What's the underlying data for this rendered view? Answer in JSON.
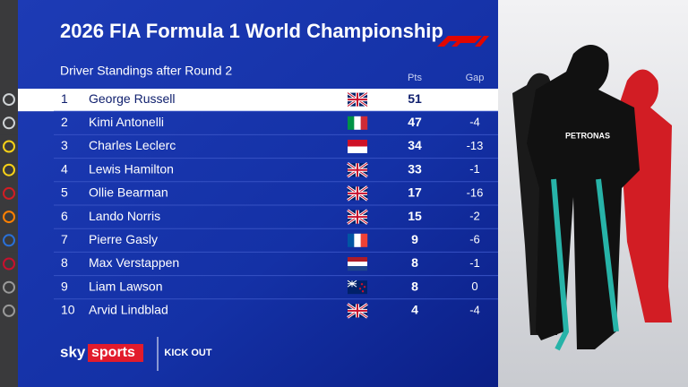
{
  "header": {
    "title": "2026 FIA Formula 1 World Championship",
    "subtitle": "Driver Standings after Round 2"
  },
  "table": {
    "columns": [
      "Pts",
      "Gap"
    ],
    "rows": [
      {
        "pos": 1,
        "driver": "George Russell",
        "pts": 51,
        "gap": null
      },
      {
        "pos": 2,
        "driver": "Kimi Antonelli",
        "pts": 47,
        "gap": -4
      },
      {
        "pos": 3,
        "driver": "Charles Leclerc",
        "pts": 34,
        "gap": -13
      },
      {
        "pos": 4,
        "driver": "Lewis Hamilton",
        "pts": 33,
        "gap": -1
      },
      {
        "pos": 5,
        "driver": "Ollie Bearman",
        "pts": 17,
        "gap": -16
      },
      {
        "pos": 6,
        "driver": "Lando Norris",
        "pts": 15,
        "gap": -2
      },
      {
        "pos": 7,
        "driver": "Pierre Gasly",
        "pts": 9,
        "gap": -6
      },
      {
        "pos": 8,
        "driver": "Max Verstappen",
        "pts": 8,
        "gap": -1
      },
      {
        "pos": 9,
        "driver": "Liam Lawson",
        "pts": 8,
        "gap": 0
      },
      {
        "pos": 10,
        "driver": "Arvid Lindblad",
        "pts": 4,
        "gap": -4
      }
    ]
  },
  "branding": {
    "sky": "sky",
    "sports": "sports",
    "partner": "KICK OUT"
  }
}
